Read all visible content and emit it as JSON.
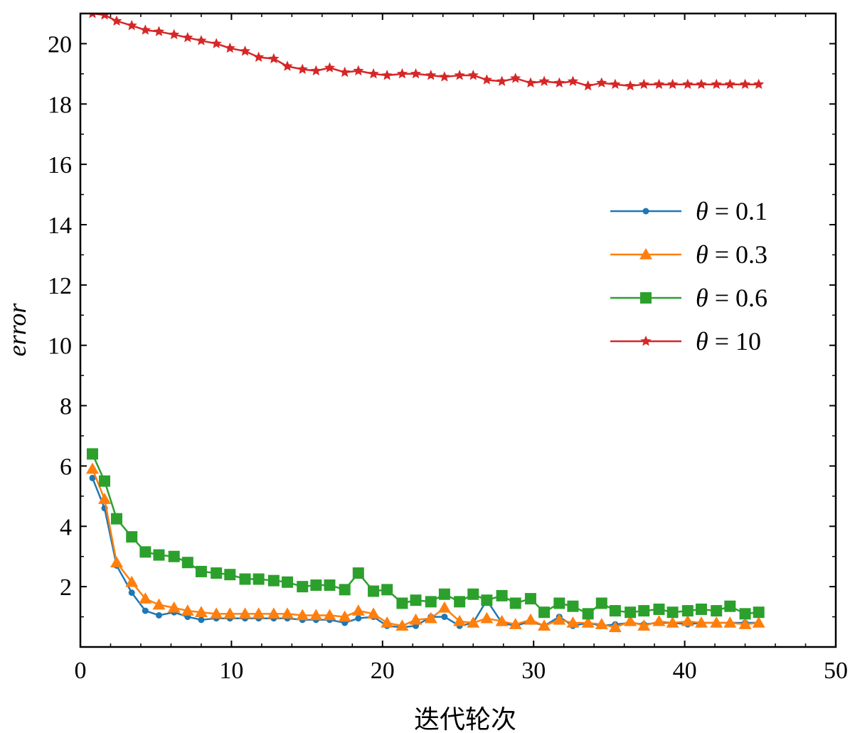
{
  "chart_data": {
    "type": "line",
    "xlabel": "迭代轮次",
    "ylabel": "error",
    "xlim": [
      0,
      50
    ],
    "ylim": [
      0,
      21
    ],
    "xticks": [
      0,
      10,
      20,
      30,
      40,
      50
    ],
    "yticks": [
      2,
      4,
      6,
      8,
      10,
      12,
      14,
      16,
      18,
      20
    ],
    "legend_position": "center-right",
    "grid": false,
    "x": [
      0.8,
      1.6,
      2.4,
      3.4,
      4.3,
      5.2,
      6.2,
      7.1,
      8.0,
      9.0,
      9.9,
      10.9,
      11.8,
      12.8,
      13.7,
      14.7,
      15.6,
      16.5,
      17.5,
      18.4,
      19.4,
      20.3,
      21.3,
      22.2,
      23.2,
      24.1,
      25.1,
      26.0,
      26.9,
      27.9,
      28.8,
      29.8,
      30.7,
      31.7,
      32.6,
      33.6,
      34.5,
      35.4,
      36.4,
      37.3,
      38.3,
      39.2,
      40.2,
      41.1,
      42.1,
      43.0,
      44.0,
      44.9
    ],
    "series": [
      {
        "name": "θ = 0.1",
        "color": "#1f77b4",
        "marker": "circle",
        "values": [
          5.6,
          4.6,
          2.7,
          1.8,
          1.2,
          1.05,
          1.15,
          1.0,
          0.9,
          0.95,
          0.95,
          0.95,
          0.95,
          0.95,
          0.95,
          0.9,
          0.9,
          0.9,
          0.8,
          0.95,
          1.0,
          0.7,
          0.65,
          0.7,
          1.0,
          1.0,
          0.7,
          0.8,
          1.55,
          0.8,
          0.7,
          0.85,
          0.7,
          1.0,
          0.7,
          0.8,
          0.7,
          0.75,
          0.8,
          0.75,
          0.8,
          0.8,
          0.75,
          0.8,
          0.8,
          0.8,
          0.8,
          0.8
        ]
      },
      {
        "name": "θ = 0.3",
        "color": "#ff7f0e",
        "marker": "triangle",
        "values": [
          5.9,
          4.9,
          2.8,
          2.15,
          1.6,
          1.4,
          1.3,
          1.2,
          1.15,
          1.1,
          1.1,
          1.1,
          1.1,
          1.1,
          1.1,
          1.05,
          1.05,
          1.05,
          1.0,
          1.2,
          1.1,
          0.8,
          0.7,
          0.9,
          0.95,
          1.3,
          0.85,
          0.8,
          0.95,
          0.85,
          0.75,
          0.9,
          0.7,
          0.9,
          0.8,
          0.8,
          0.75,
          0.65,
          0.85,
          0.7,
          0.85,
          0.8,
          0.85,
          0.8,
          0.8,
          0.8,
          0.75,
          0.8
        ]
      },
      {
        "name": "θ = 0.6",
        "color": "#2ca02c",
        "marker": "square",
        "values": [
          6.4,
          5.5,
          4.25,
          3.65,
          3.15,
          3.05,
          3.0,
          2.8,
          2.5,
          2.45,
          2.4,
          2.25,
          2.25,
          2.2,
          2.15,
          2.0,
          2.05,
          2.05,
          1.9,
          2.45,
          1.85,
          1.9,
          1.45,
          1.55,
          1.5,
          1.75,
          1.5,
          1.75,
          1.55,
          1.7,
          1.45,
          1.6,
          1.15,
          1.45,
          1.35,
          1.1,
          1.45,
          1.2,
          1.15,
          1.2,
          1.25,
          1.15,
          1.2,
          1.25,
          1.2,
          1.35,
          1.1,
          1.15
        ]
      },
      {
        "name": "θ = 10",
        "color": "#d62728",
        "marker": "star",
        "values": [
          21.0,
          20.95,
          20.75,
          20.6,
          20.45,
          20.4,
          20.3,
          20.2,
          20.1,
          20.0,
          19.85,
          19.75,
          19.55,
          19.5,
          19.25,
          19.15,
          19.1,
          19.2,
          19.05,
          19.1,
          19.0,
          18.95,
          19.0,
          19.0,
          18.95,
          18.9,
          18.95,
          18.95,
          18.8,
          18.75,
          18.85,
          18.7,
          18.75,
          18.7,
          18.75,
          18.6,
          18.7,
          18.65,
          18.6,
          18.65,
          18.65,
          18.65,
          18.65,
          18.65,
          18.65,
          18.65,
          18.65,
          18.65
        ]
      }
    ]
  }
}
